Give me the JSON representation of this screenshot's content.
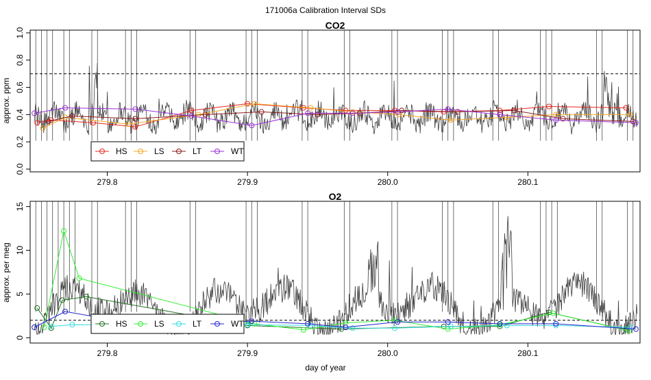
{
  "figure": {
    "suptitle": "171006a   Calibration Interval SDs",
    "xlabel": "day of year"
  },
  "chart_data": [
    {
      "type": "line",
      "title": "CO2",
      "xlabel": "",
      "ylabel": "approx. ppm",
      "xlim": [
        279.745,
        280.18
      ],
      "ylim": [
        -0.02,
        1.02
      ],
      "xticks": [
        "279.8",
        "279.9",
        "280.0",
        "280.1"
      ],
      "xtick_values": [
        279.8,
        279.9,
        280.0,
        280.1
      ],
      "yticks": [
        "0.0",
        "0.2",
        "0.4",
        "0.6",
        "0.8",
        "1.0"
      ],
      "ytick_values": [
        0,
        0.2,
        0.4,
        0.6,
        0.8,
        1.0
      ],
      "reference_line": 0.7,
      "grid": false,
      "legend": "bottom-left",
      "trace_color": "#3a3a3a",
      "trace_range": [
        279.748,
        280.178
      ],
      "calibration_times": [
        279.749,
        279.753,
        279.757,
        279.761,
        279.769,
        279.773,
        279.789,
        279.793,
        279.813,
        279.817,
        279.821,
        279.859,
        279.863,
        279.899,
        279.903,
        279.907,
        279.939,
        279.943,
        279.969,
        279.973,
        280.003,
        280.007,
        280.039,
        280.043,
        280.047,
        280.075,
        280.079,
        280.109,
        280.113,
        280.117,
        280.149,
        280.153,
        280.171,
        280.175
      ],
      "series": [
        {
          "name": "HS",
          "color": "#e8271e",
          "x": [
            279.75,
            279.76,
            279.79,
            279.82,
            279.86,
            279.9,
            279.94,
            279.97,
            280.005,
            280.04,
            280.08,
            280.115,
            280.17
          ],
          "y": [
            0.34,
            0.36,
            0.34,
            0.31,
            0.43,
            0.48,
            0.45,
            0.43,
            0.43,
            0.42,
            0.43,
            0.46,
            0.45
          ]
        },
        {
          "name": "LS",
          "color": "#f5a623",
          "x": [
            279.754,
            279.77,
            279.815,
            279.865,
            279.905,
            279.945,
            279.975,
            280.008,
            280.045,
            280.085,
            280.12,
            280.173
          ],
          "y": [
            0.3,
            0.38,
            0.33,
            0.4,
            0.48,
            0.45,
            0.42,
            0.4,
            0.36,
            0.38,
            0.4,
            0.4
          ]
        },
        {
          "name": "LT",
          "color": "#8b1a1a",
          "x": [
            279.758,
            279.775,
            279.82,
            279.87,
            279.91,
            279.95,
            279.98,
            280.01,
            280.05,
            280.09,
            280.125,
            280.175
          ],
          "y": [
            0.35,
            0.39,
            0.37,
            0.4,
            0.42,
            0.4,
            0.41,
            0.43,
            0.42,
            0.43,
            0.37,
            0.35
          ]
        },
        {
          "name": "WT",
          "color": "#9b30d9",
          "x": [
            279.748,
            279.77,
            279.82,
            279.86,
            279.903,
            279.943,
            279.975,
            280.007,
            280.043,
            280.08,
            280.12,
            280.177
          ],
          "y": [
            0.41,
            0.45,
            0.44,
            0.39,
            0.32,
            0.41,
            0.41,
            0.42,
            0.44,
            0.4,
            0.36,
            0.34
          ]
        }
      ]
    },
    {
      "type": "line",
      "title": "O2",
      "xlabel": "day of year",
      "ylabel": "approx. per meg",
      "xlim": [
        279.745,
        280.18
      ],
      "ylim": [
        -0.6,
        15.6
      ],
      "xticks": [
        "279.8",
        "279.9",
        "280.0",
        "280.1"
      ],
      "xtick_values": [
        279.8,
        279.9,
        280.0,
        280.1
      ],
      "yticks": [
        "0",
        "5",
        "10",
        "15"
      ],
      "ytick_values": [
        0,
        5,
        10,
        15
      ],
      "reference_line": 2,
      "grid": false,
      "legend": "bottom-left",
      "trace_color": "#3a3a3a",
      "trace_range": [
        279.748,
        280.178
      ],
      "calibration_times": [
        279.749,
        279.753,
        279.757,
        279.761,
        279.765,
        279.769,
        279.773,
        279.777,
        279.789,
        279.793,
        279.813,
        279.817,
        279.821,
        279.859,
        279.863,
        279.899,
        279.903,
        279.907,
        279.939,
        279.943,
        279.969,
        279.973,
        280.003,
        280.007,
        280.039,
        280.043,
        280.047,
        280.075,
        280.079,
        280.109,
        280.113,
        280.117,
        280.121,
        280.149,
        280.153,
        280.171,
        280.175
      ],
      "series": [
        {
          "name": "HS",
          "color": "#1f6e1f",
          "x": [
            279.75,
            279.76,
            279.768,
            279.785,
            279.9,
            279.967,
            280.04,
            280.08,
            280.115,
            280.17
          ],
          "y": [
            3.4,
            1.1,
            4.3,
            4.7,
            1.4,
            1.0,
            1.3,
            1.3,
            2.9,
            0.9
          ]
        },
        {
          "name": "LS",
          "color": "#33ee33",
          "x": [
            279.755,
            279.769,
            279.78,
            279.905,
            279.94,
            279.97,
            280.005,
            280.043,
            280.08,
            280.118,
            280.172
          ],
          "y": [
            1.2,
            12.2,
            6.8,
            1.6,
            0.9,
            1.7,
            2.0,
            1.0,
            1.5,
            2.8,
            0.8
          ]
        },
        {
          "name": "LT",
          "color": "#33dddd",
          "x": [
            279.76,
            279.775,
            279.86,
            279.9,
            279.945,
            279.975,
            280.005,
            280.045,
            280.085,
            280.12,
            280.173
          ],
          "y": [
            1.3,
            1.5,
            1.4,
            1.5,
            1.4,
            1.1,
            1.1,
            1.3,
            1.4,
            1.4,
            1.2
          ]
        },
        {
          "name": "WT",
          "color": "#2222cc",
          "x": [
            279.748,
            279.77,
            279.82,
            279.86,
            279.903,
            279.943,
            279.97,
            280.007,
            280.043,
            280.08,
            280.12,
            280.177
          ],
          "y": [
            1.2,
            3.0,
            1.6,
            1.6,
            1.9,
            1.6,
            1.2,
            1.8,
            1.8,
            1.6,
            1.6,
            1.0
          ]
        }
      ]
    }
  ]
}
